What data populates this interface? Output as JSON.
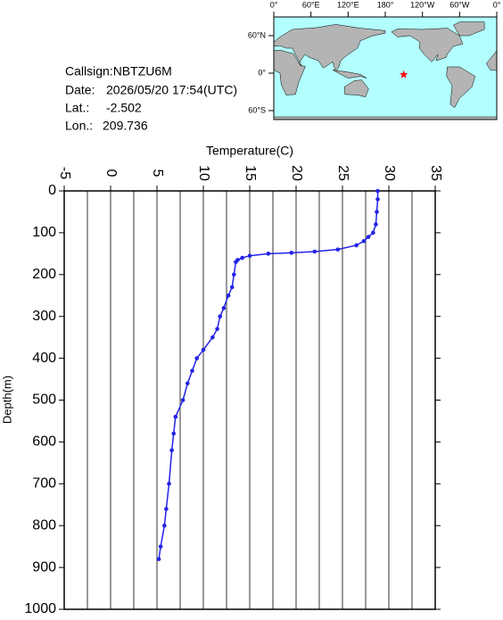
{
  "station": {
    "callsign": "Callsign:NBTZU6M",
    "date_label": "Date:",
    "date": "2026/05/20 17:54(UTC)",
    "lat_label": "Lat.:",
    "lat": -2.502,
    "lon_label": "Lon.:",
    "lon": 209.736
  },
  "map": {
    "lon_ticks": [
      {
        "value": 0,
        "label": "0°"
      },
      {
        "value": 60,
        "label": "60°E"
      },
      {
        "value": 120,
        "label": "120°E"
      },
      {
        "value": 180,
        "label": "180°"
      },
      {
        "value": 240,
        "label": "120°W"
      },
      {
        "value": 300,
        "label": "60°W"
      },
      {
        "value": 360,
        "label": "0°"
      }
    ],
    "lat_ticks": [
      {
        "value": 60,
        "label": "60°N"
      },
      {
        "value": 0,
        "label": "0°"
      },
      {
        "value": -60,
        "label": "60°S"
      }
    ],
    "marker_color": "#ff0000"
  },
  "chart_data": {
    "type": "line",
    "x_label": "Temperature(C)",
    "y_label": "Depth(m)",
    "xlim": [
      -5,
      35
    ],
    "xticks": [
      -5,
      0,
      5,
      10,
      15,
      20,
      25,
      30,
      35
    ],
    "x_minor_ticks": [
      -2.5,
      2.5,
      7.5,
      12.5,
      17.5,
      22.5,
      27.5,
      32.5
    ],
    "ylim": [
      0,
      1000
    ],
    "y_inverted": true,
    "yticks": [
      0,
      100,
      200,
      300,
      400,
      500,
      600,
      700,
      800,
      900,
      1000
    ],
    "grid": true,
    "series": [
      {
        "color": "#2323e6",
        "x": [
          28.8,
          28.8,
          28.7,
          28.6,
          28.3,
          27.8,
          27.3,
          26.5,
          24.5,
          22,
          19.5,
          17,
          15,
          14.2,
          13.7,
          13.5,
          13.3,
          13.1,
          12.7,
          12.2,
          11.8,
          11.5,
          11.0,
          10.0,
          9.3,
          8.8,
          8.3,
          7.8,
          7.0,
          6.8,
          6.6,
          6.3,
          6.0,
          5.8,
          5.4,
          5.2
        ],
        "values": [
          0,
          20,
          50,
          80,
          100,
          110,
          120,
          130,
          140,
          145,
          148,
          150,
          155,
          160,
          165,
          170,
          200,
          230,
          250,
          280,
          300,
          330,
          350,
          380,
          400,
          430,
          460,
          500,
          540,
          580,
          620,
          700,
          760,
          800,
          850,
          880
        ]
      }
    ]
  }
}
